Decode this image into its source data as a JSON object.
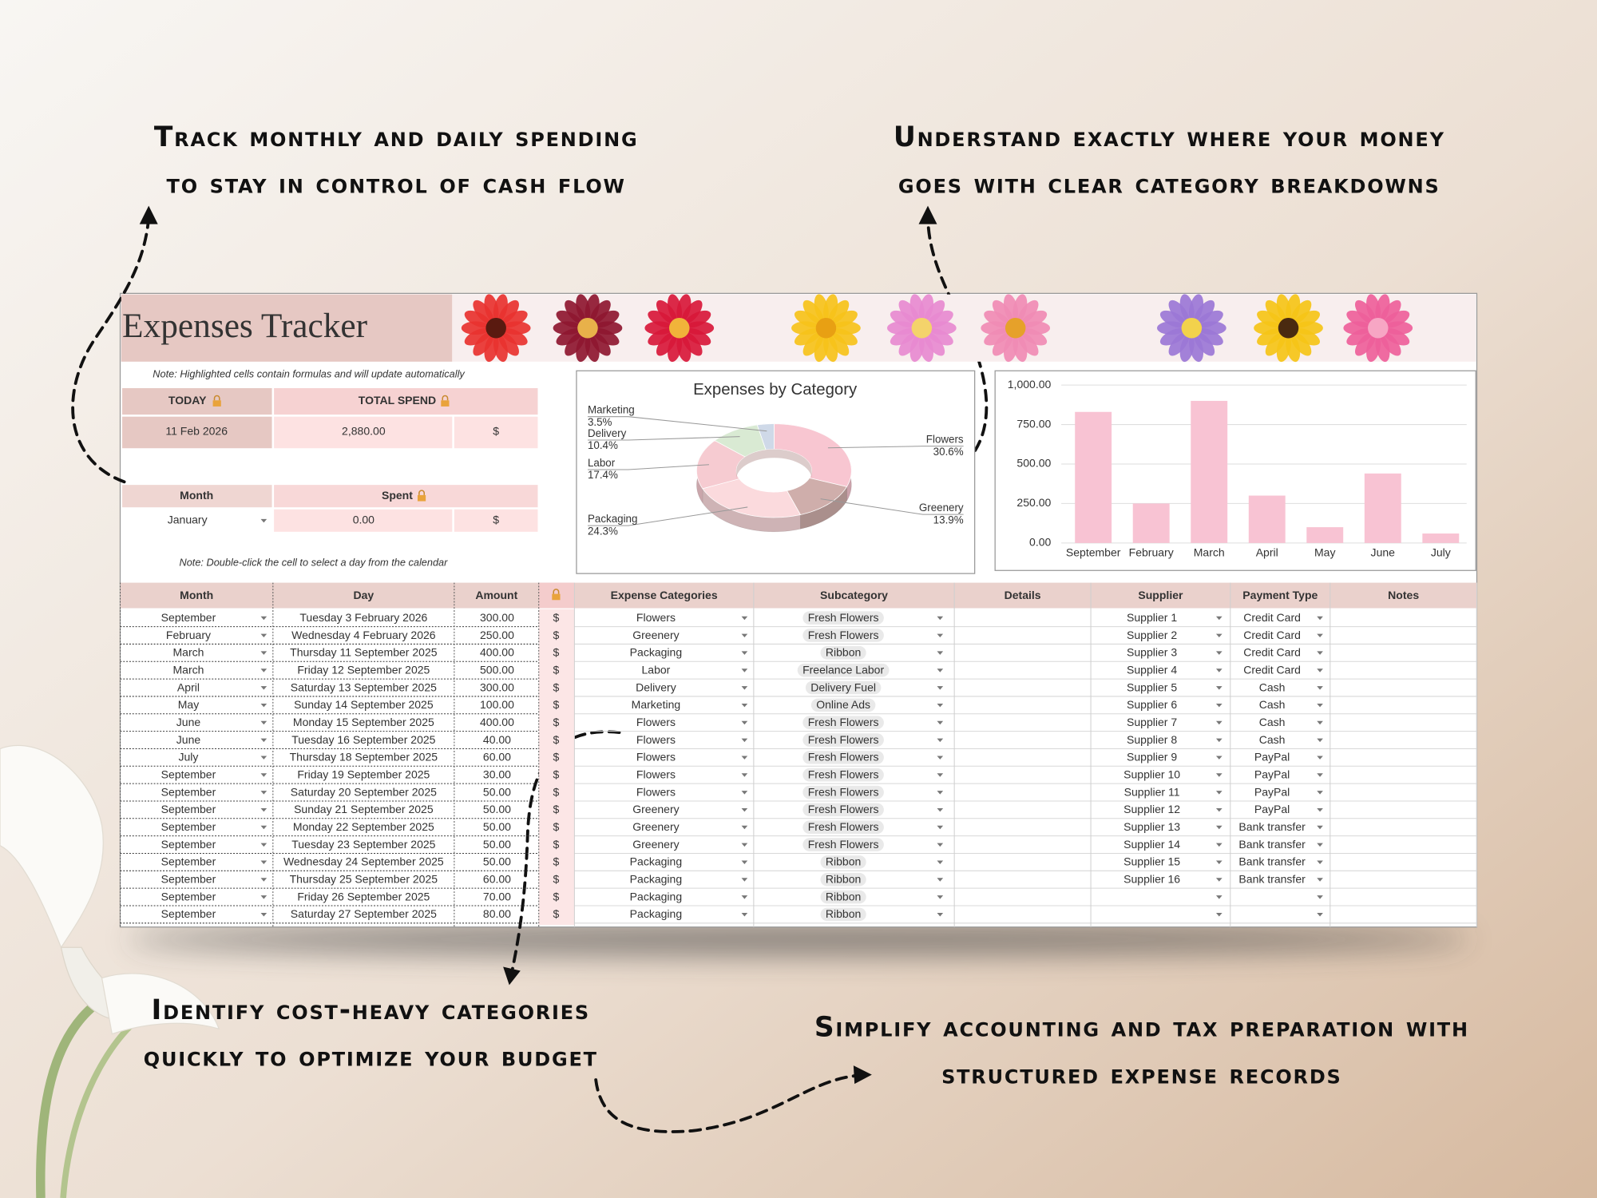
{
  "captions": [
    {
      "lines": [
        "Track monthly and daily spending",
        "to stay in control of cash flow"
      ]
    },
    {
      "lines": [
        "Understand exactly where your money",
        "goes with clear category breakdowns"
      ]
    },
    {
      "lines": [
        "Identify cost-heavy categories",
        "quickly to optimize your budget"
      ]
    },
    {
      "lines": [
        "Simplify accounting and tax preparation with",
        "structured expense records"
      ]
    }
  ],
  "sheet": {
    "title": "Expenses Tracker",
    "note_formulas": "Note: Highlighted cells contain formulas and will update automatically",
    "today": {
      "label": "TODAY",
      "value": "11 Feb 2026"
    },
    "total_spend": {
      "label": "TOTAL SPEND",
      "value": "2,880.00",
      "currency": "$"
    },
    "month_filter": {
      "label": "Month",
      "value": "January"
    },
    "spent": {
      "label": "Spent",
      "value": "0.00",
      "currency": "$"
    },
    "note_calendar": "Note: Double-click the cell to select a day from the calendar"
  },
  "chart_data": [
    {
      "type": "pie",
      "title": "Expenses by Category",
      "categories": [
        "Flowers",
        "Greenery",
        "Packaging",
        "Labor",
        "Delivery",
        "Marketing"
      ],
      "values": [
        30.6,
        13.9,
        24.3,
        17.4,
        10.4,
        3.5
      ],
      "value_labels": [
        "30.6%",
        "13.9%",
        "24.3%",
        "17.4%",
        "10.4%",
        "3.5%"
      ],
      "colors": [
        "#f8c6d1",
        "#cfaeab",
        "#fbdadd",
        "#f6cbd1",
        "#d9ead3",
        "#cfd9e8"
      ]
    },
    {
      "type": "bar",
      "categories": [
        "September",
        "February",
        "March",
        "April",
        "May",
        "June",
        "July"
      ],
      "values": [
        830,
        250,
        900,
        300,
        100,
        440,
        60
      ],
      "color": "#f8c3d3",
      "ylim": [
        0,
        1000
      ],
      "yticks": [
        {
          "value": 0,
          "label": "0.00"
        },
        {
          "value": 250,
          "label": "250.00"
        },
        {
          "value": 500,
          "label": "500.00"
        },
        {
          "value": 750,
          "label": "750.00"
        },
        {
          "value": 1000,
          "label": "1,000.00"
        }
      ],
      "grid": true
    }
  ],
  "table": {
    "headers": [
      "Month",
      "Day",
      "Amount",
      "Expense Categories",
      "Subcategory",
      "Details",
      "Supplier",
      "Payment Type",
      "Notes"
    ],
    "rows": [
      {
        "month": "September",
        "day": "Tuesday 3 February 2026",
        "amount": "300.00",
        "currency": "$",
        "category": "Flowers",
        "subcategory": "Fresh Flowers",
        "supplier": "Supplier 1",
        "payment": "Credit Card"
      },
      {
        "month": "February",
        "day": "Wednesday 4 February 2026",
        "amount": "250.00",
        "currency": "$",
        "category": "Greenery",
        "subcategory": "Fresh Flowers",
        "supplier": "Supplier 2",
        "payment": "Credit Card"
      },
      {
        "month": "March",
        "day": "Thursday 11 September 2025",
        "amount": "400.00",
        "currency": "$",
        "category": "Packaging",
        "subcategory": "Ribbon",
        "supplier": "Supplier 3",
        "payment": "Credit Card"
      },
      {
        "month": "March",
        "day": "Friday 12 September 2025",
        "amount": "500.00",
        "currency": "$",
        "category": "Labor",
        "subcategory": "Freelance Labor",
        "supplier": "Supplier 4",
        "payment": "Credit Card"
      },
      {
        "month": "April",
        "day": "Saturday 13 September 2025",
        "amount": "300.00",
        "currency": "$",
        "category": "Delivery",
        "subcategory": "Delivery Fuel",
        "supplier": "Supplier 5",
        "payment": "Cash"
      },
      {
        "month": "May",
        "day": "Sunday 14 September 2025",
        "amount": "100.00",
        "currency": "$",
        "category": "Marketing",
        "subcategory": "Online Ads",
        "supplier": "Supplier 6",
        "payment": "Cash"
      },
      {
        "month": "June",
        "day": "Monday 15 September 2025",
        "amount": "400.00",
        "currency": "$",
        "category": "Flowers",
        "subcategory": "Fresh Flowers",
        "supplier": "Supplier 7",
        "payment": "Cash"
      },
      {
        "month": "June",
        "day": "Tuesday 16 September 2025",
        "amount": "40.00",
        "currency": "$",
        "category": "Flowers",
        "subcategory": "Fresh Flowers",
        "supplier": "Supplier 8",
        "payment": "Cash"
      },
      {
        "month": "July",
        "day": "Thursday 18 September 2025",
        "amount": "60.00",
        "currency": "$",
        "category": "Flowers",
        "subcategory": "Fresh Flowers",
        "supplier": "Supplier 9",
        "payment": "PayPal"
      },
      {
        "month": "September",
        "day": "Friday 19 September 2025",
        "amount": "30.00",
        "currency": "$",
        "category": "Flowers",
        "subcategory": "Fresh Flowers",
        "supplier": "Supplier 10",
        "payment": "PayPal"
      },
      {
        "month": "September",
        "day": "Saturday 20 September 2025",
        "amount": "50.00",
        "currency": "$",
        "category": "Flowers",
        "subcategory": "Fresh Flowers",
        "supplier": "Supplier 11",
        "payment": "PayPal"
      },
      {
        "month": "September",
        "day": "Sunday 21 September 2025",
        "amount": "50.00",
        "currency": "$",
        "category": "Greenery",
        "subcategory": "Fresh Flowers",
        "supplier": "Supplier 12",
        "payment": "PayPal"
      },
      {
        "month": "September",
        "day": "Monday 22 September 2025",
        "amount": "50.00",
        "currency": "$",
        "category": "Greenery",
        "subcategory": "Fresh Flowers",
        "supplier": "Supplier 13",
        "payment": "Bank transfer"
      },
      {
        "month": "September",
        "day": "Tuesday 23 September 2025",
        "amount": "50.00",
        "currency": "$",
        "category": "Greenery",
        "subcategory": "Fresh Flowers",
        "supplier": "Supplier 14",
        "payment": "Bank transfer"
      },
      {
        "month": "September",
        "day": "Wednesday 24 September 2025",
        "amount": "50.00",
        "currency": "$",
        "category": "Packaging",
        "subcategory": "Ribbon",
        "supplier": "Supplier 15",
        "payment": "Bank transfer"
      },
      {
        "month": "September",
        "day": "Thursday 25 September 2025",
        "amount": "60.00",
        "currency": "$",
        "category": "Packaging",
        "subcategory": "Ribbon",
        "supplier": "Supplier 16",
        "payment": "Bank transfer"
      },
      {
        "month": "September",
        "day": "Friday 26 September 2025",
        "amount": "70.00",
        "currency": "$",
        "category": "Packaging",
        "subcategory": "Ribbon"
      },
      {
        "month": "September",
        "day": "Saturday 27 September 2025",
        "amount": "80.00",
        "currency": "$",
        "category": "Packaging",
        "subcategory": "Ribbon"
      }
    ]
  }
}
